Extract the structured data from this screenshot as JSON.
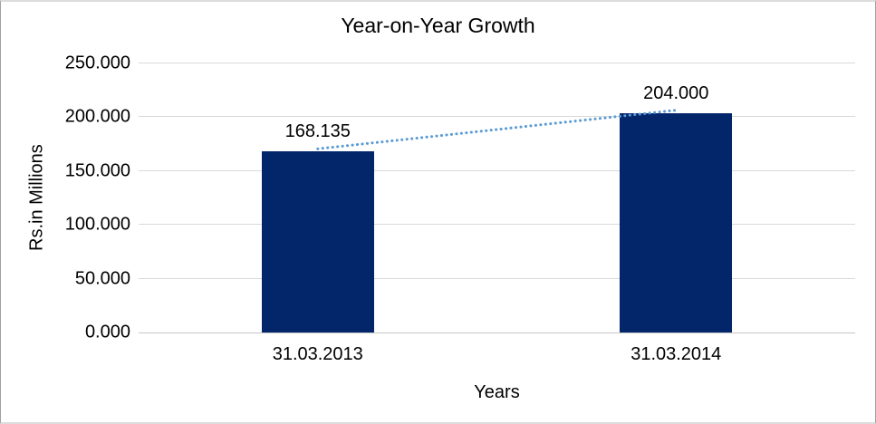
{
  "chart_data": {
    "type": "bar",
    "title": "Year-on-Year Growth",
    "xlabel": "Years",
    "ylabel": "Rs.in Millions",
    "categories": [
      "31.03.2013",
      "31.03.2014"
    ],
    "values": [
      168.135,
      204.0
    ],
    "data_labels": [
      "168.135",
      "204.000"
    ],
    "ylim": [
      0,
      250
    ],
    "ytick_values": [
      0,
      50,
      100,
      150,
      200,
      250
    ],
    "ytick_labels": [
      "0.000",
      "50.000",
      "100.000",
      "150.000",
      "200.000",
      "250.000"
    ],
    "grid": true,
    "legend": "none",
    "colors": {
      "bar": "#03266B",
      "gridline": "#D9D9D9",
      "axis_line": "#C6C6C6",
      "trendline": "#5B9BD5",
      "text": "#000000",
      "background": "#FFFFFF"
    },
    "trendline": {
      "style": "dotted",
      "from_category": "31.03.2013",
      "to_category": "31.03.2014"
    }
  }
}
